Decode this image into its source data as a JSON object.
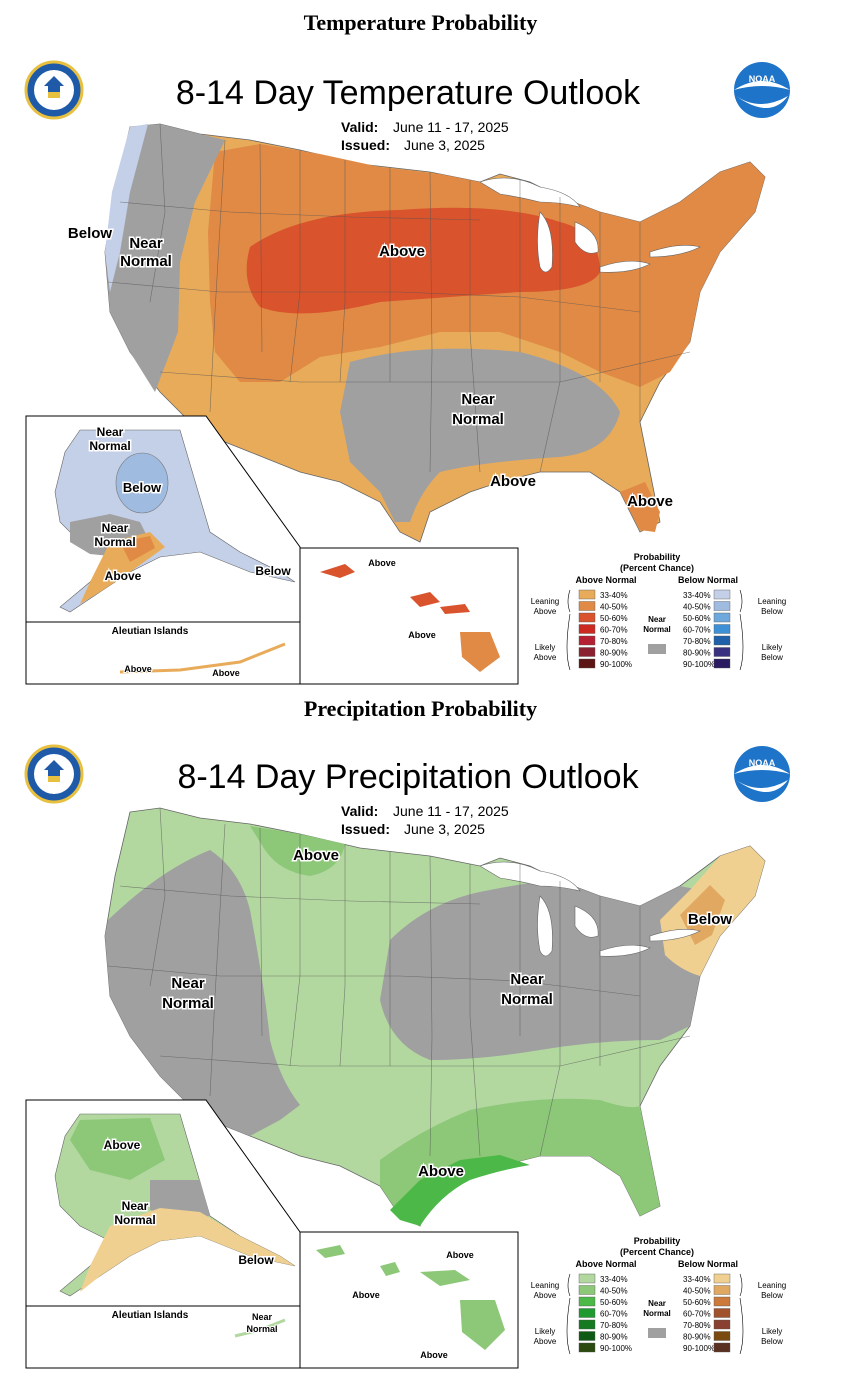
{
  "sections": [
    {
      "heading": "Temperature Probability",
      "title": "8-14 Day Temperature Outlook",
      "valid_label": "Valid:",
      "valid_value": "June 11 - 17, 2025",
      "issued_label": "Issued:",
      "issued_value": "June 3, 2025",
      "regions": {
        "below_west": "Below",
        "near_west_1": "Near",
        "near_west_2": "Normal",
        "above_north": "Above",
        "near_south_1": "Near",
        "near_south_2": "Normal",
        "above_gulf": "Above",
        "above_florida": "Above"
      },
      "alaska": {
        "near_1": "Near",
        "near_2": "Normal",
        "below_center": "Below",
        "near_south_1": "Near",
        "near_south_2": "Normal",
        "above": "Above",
        "below_panhandle": "Below"
      },
      "aleutian": {
        "title": "Aleutian Islands",
        "label_1": "Above",
        "label_2": "Above"
      },
      "hawaii": {
        "label_1": "Above",
        "label_2": "Above"
      },
      "legend": {
        "title_1": "Probability",
        "title_2": "(Percent Chance)",
        "above_head": "Above Normal",
        "below_head": "Below Normal",
        "leaning_1": "Leaning",
        "leaning_2": "Above",
        "likely_1": "Likely",
        "likely_2": "Above",
        "leaning_b1": "Leaning",
        "leaning_b2": "Below",
        "likely_b1": "Likely",
        "likely_b2": "Below",
        "near_1": "Near",
        "near_2": "Normal",
        "ranges": [
          "33-40%",
          "40-50%",
          "50-60%",
          "60-70%",
          "70-80%",
          "80-90%",
          "90-100%"
        ],
        "above_colors": [
          "#e8ab5a",
          "#e08a45",
          "#d9532c",
          "#cc2a20",
          "#b52032",
          "#8a2030",
          "#5c1414"
        ],
        "below_colors": [
          "#c4cfe8",
          "#9fbbe0",
          "#6fa8dc",
          "#3d8fd6",
          "#2060a8",
          "#3a3080",
          "#2a1a60"
        ],
        "near_color": "#a0a0a0"
      }
    },
    {
      "heading": "Precipitation Probability",
      "title": "8-14 Day Precipitation Outlook",
      "valid_label": "Valid:",
      "valid_value": "June 11 - 17, 2025",
      "issued_label": "Issued:",
      "issued_value": "June 3, 2025",
      "regions": {
        "above_north": "Above",
        "below_ne": "Below",
        "near_west_1": "Near",
        "near_west_2": "Normal",
        "near_mid_1": "Near",
        "near_mid_2": "Normal",
        "above_gulf": "Above"
      },
      "alaska": {
        "above": "Above",
        "near_1": "Near",
        "near_2": "Normal",
        "below": "Below"
      },
      "aleutian": {
        "title": "Aleutian Islands",
        "label_1": "Near",
        "label_2": "Normal"
      },
      "hawaii": {
        "label_1": "Above",
        "label_2": "Above",
        "label_3": "Above"
      },
      "legend": {
        "title_1": "Probability",
        "title_2": "(Percent Chance)",
        "above_head": "Above Normal",
        "below_head": "Below Normal",
        "leaning_1": "Leaning",
        "leaning_2": "Above",
        "likely_1": "Likely",
        "likely_2": "Above",
        "leaning_b1": "Leaning",
        "leaning_b2": "Below",
        "likely_b1": "Likely",
        "likely_b2": "Below",
        "near_1": "Near",
        "near_2": "Normal",
        "ranges": [
          "33-40%",
          "40-50%",
          "50-60%",
          "60-70%",
          "70-80%",
          "80-90%",
          "90-100%"
        ],
        "above_colors": [
          "#b2d8a0",
          "#8cc878",
          "#4cb848",
          "#1e9a30",
          "#157a20",
          "#0e5a14",
          "#2a4a10"
        ],
        "below_colors": [
          "#f0d090",
          "#e0a860",
          "#cc7a3c",
          "#a0522d",
          "#8a4030",
          "#7a4a10",
          "#5a3020"
        ],
        "near_color": "#a0a0a0"
      }
    }
  ],
  "colors": {
    "gray": "#a0a0a0",
    "temp_lean": "#e8ab5a",
    "temp_mid": "#e08a45",
    "temp_high": "#d9532c",
    "temp_below": "#c4cfe8",
    "temp_below2": "#9fbbe0",
    "prcp_lean": "#b2d8a0",
    "prcp_mid": "#8cc878",
    "prcp_high": "#4cb848",
    "prcp_below": "#f0d090",
    "prcp_below2": "#e0a860",
    "noaa_blue": "#1e74c8"
  }
}
